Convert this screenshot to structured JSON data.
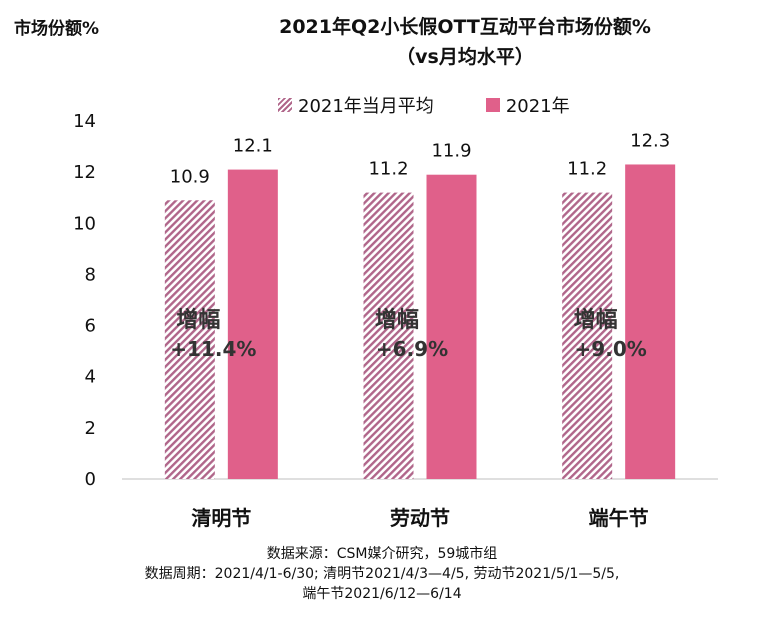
{
  "chart_data": {
    "type": "bar",
    "title_line1": "2021年Q2小长假OTT互动平台市场份额%",
    "title_line2": "（vs月均水平）",
    "ylabel": "市场份额%",
    "ylim": [
      0,
      14
    ],
    "yticks": [
      "0",
      "2",
      "4",
      "6",
      "8",
      "10",
      "12",
      "14"
    ],
    "categories": [
      "清明节",
      "劳动节",
      "端午节"
    ],
    "series": [
      {
        "name": "2021年当月平均",
        "values": [
          10.9,
          11.2,
          11.2
        ],
        "value_labels": [
          "10.9",
          "11.2",
          "11.2"
        ],
        "color": "#b0668a",
        "pattern": "hatch"
      },
      {
        "name": "2021年",
        "values": [
          12.1,
          11.9,
          12.3
        ],
        "value_labels": [
          "12.1",
          "11.9",
          "12.3"
        ],
        "color": "#e0608a",
        "pattern": "solid"
      }
    ],
    "annotations": [
      {
        "label": "增幅",
        "value": "+11.4%"
      },
      {
        "label": "增幅",
        "value": "+6.9%"
      },
      {
        "label": "增幅",
        "value": "+9.0%"
      }
    ]
  },
  "source": {
    "line1": "数据来源：CSM媒介研究，59城市组",
    "line2": "数据周期：2021/4/1-6/30; 清明节2021/4/3—4/5, 劳动节2021/5/1—5/5,",
    "line3": "端午节2021/6/12—6/14"
  }
}
